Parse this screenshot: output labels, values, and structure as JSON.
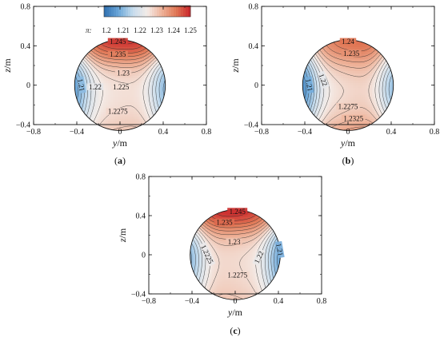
{
  "chart_data": {
    "type": "contour",
    "colorbar": {
      "label": "π:",
      "ticks": [
        "1.2",
        "1.21",
        "1.22",
        "1.23",
        "1.24",
        "1.25"
      ],
      "range": [
        1.2,
        1.25
      ],
      "colors": [
        "#2f6fb0",
        "#6aa6d8",
        "#c6dced",
        "#f4ece8",
        "#eeb39a",
        "#e07856",
        "#c9242a"
      ]
    },
    "panels": [
      {
        "caption_letter": "a",
        "xlabel_var": "y",
        "xlabel_unit": "/m",
        "ylabel_var": "z",
        "ylabel_unit": "/m",
        "xlim": [
          -0.8,
          0.8
        ],
        "ylim": [
          -0.4,
          0.8
        ],
        "xticks": [
          "−0.8",
          "−0.4",
          "0",
          "0.4",
          "0.8"
        ],
        "yticks": [
          "−0.4",
          "0",
          "0.4",
          "0.8"
        ],
        "circle_radius": 0.46,
        "field": {
          "center": 1.2265,
          "top_peak": 1.248,
          "top_sharp": 3.5,
          "side_drop": 0.018,
          "side_sharp": 3.0,
          "side_asym": 0.002,
          "bottom_rise": 0.004
        },
        "contour_labels": [
          {
            "text": "1.245",
            "y": -0.02,
            "z": 0.43,
            "rot": 0
          },
          {
            "text": "1.235",
            "y": -0.02,
            "z": 0.3,
            "rot": 0
          },
          {
            "text": "1.23",
            "y": 0.03,
            "z": 0.11,
            "rot": 0
          },
          {
            "text": "1.225",
            "y": 0.01,
            "z": -0.03,
            "rot": 0
          },
          {
            "text": "1.22",
            "y": -0.23,
            "z": -0.03,
            "rot": 0
          },
          {
            "text": "1.21",
            "y": -0.37,
            "z": 0.0,
            "rot": 80
          },
          {
            "text": "1.2275",
            "y": -0.02,
            "z": -0.28,
            "rot": 0
          }
        ]
      },
      {
        "caption_letter": "b",
        "xlabel_var": "y",
        "xlabel_unit": "/m",
        "ylabel_var": "z",
        "ylabel_unit": "/m",
        "xlim": [
          -0.8,
          0.8
        ],
        "ylim": [
          -0.4,
          0.8
        ],
        "xticks": [
          "−0.8",
          "−0.4",
          "0",
          "0.4",
          "0.8"
        ],
        "yticks": [
          "−0.4",
          "0",
          "0.4",
          "0.8"
        ],
        "circle_radius": 0.46,
        "field": {
          "center": 1.2275,
          "top_peak": 1.242,
          "top_sharp": 3.0,
          "side_drop": 0.02,
          "side_sharp": 3.0,
          "side_asym": 0.004,
          "bottom_rise": 0.008
        },
        "contour_labels": [
          {
            "text": "1.24",
            "y": 0.0,
            "z": 0.43,
            "rot": 0
          },
          {
            "text": "1.235",
            "y": 0.03,
            "z": 0.31,
            "rot": 0
          },
          {
            "text": "1.22",
            "y": -0.24,
            "z": 0.05,
            "rot": 70
          },
          {
            "text": "1.21",
            "y": -0.37,
            "z": 0.0,
            "rot": 80
          },
          {
            "text": "1.2275",
            "y": 0.0,
            "z": -0.23,
            "rot": 0
          },
          {
            "text": "1.2325",
            "y": 0.05,
            "z": -0.35,
            "rot": 0
          }
        ]
      },
      {
        "caption_letter": "c",
        "xlabel_var": "y",
        "xlabel_unit": "/m",
        "ylabel_var": "z",
        "ylabel_unit": "/m",
        "xlim": [
          -0.8,
          0.8
        ],
        "ylim": [
          -0.4,
          0.8
        ],
        "xticks": [
          "−0.8",
          "−0.4",
          "0",
          "0.4",
          "0.8"
        ],
        "yticks": [
          "−0.4",
          "0",
          "0.4",
          "0.8"
        ],
        "circle_radius": 0.46,
        "field": {
          "center": 1.2275,
          "top_peak": 1.249,
          "top_sharp": 3.5,
          "side_drop": 0.019,
          "side_sharp": 3.0,
          "side_asym": -0.002,
          "bottom_rise": 0.003
        },
        "contour_labels": [
          {
            "text": "1.245",
            "y": 0.02,
            "z": 0.43,
            "rot": 0
          },
          {
            "text": "1.235",
            "y": -0.1,
            "z": 0.32,
            "rot": 0
          },
          {
            "text": "1.23",
            "y": -0.01,
            "z": 0.12,
            "rot": 0
          },
          {
            "text": "1.2225",
            "y": -0.27,
            "z": 0.0,
            "rot": 65
          },
          {
            "text": "1.22",
            "y": 0.23,
            "z": -0.03,
            "rot": -65
          },
          {
            "text": "1.21",
            "y": 0.4,
            "z": 0.05,
            "rot": 80
          },
          {
            "text": "1.2275",
            "y": 0.02,
            "z": -0.22,
            "rot": 0
          }
        ]
      }
    ]
  }
}
